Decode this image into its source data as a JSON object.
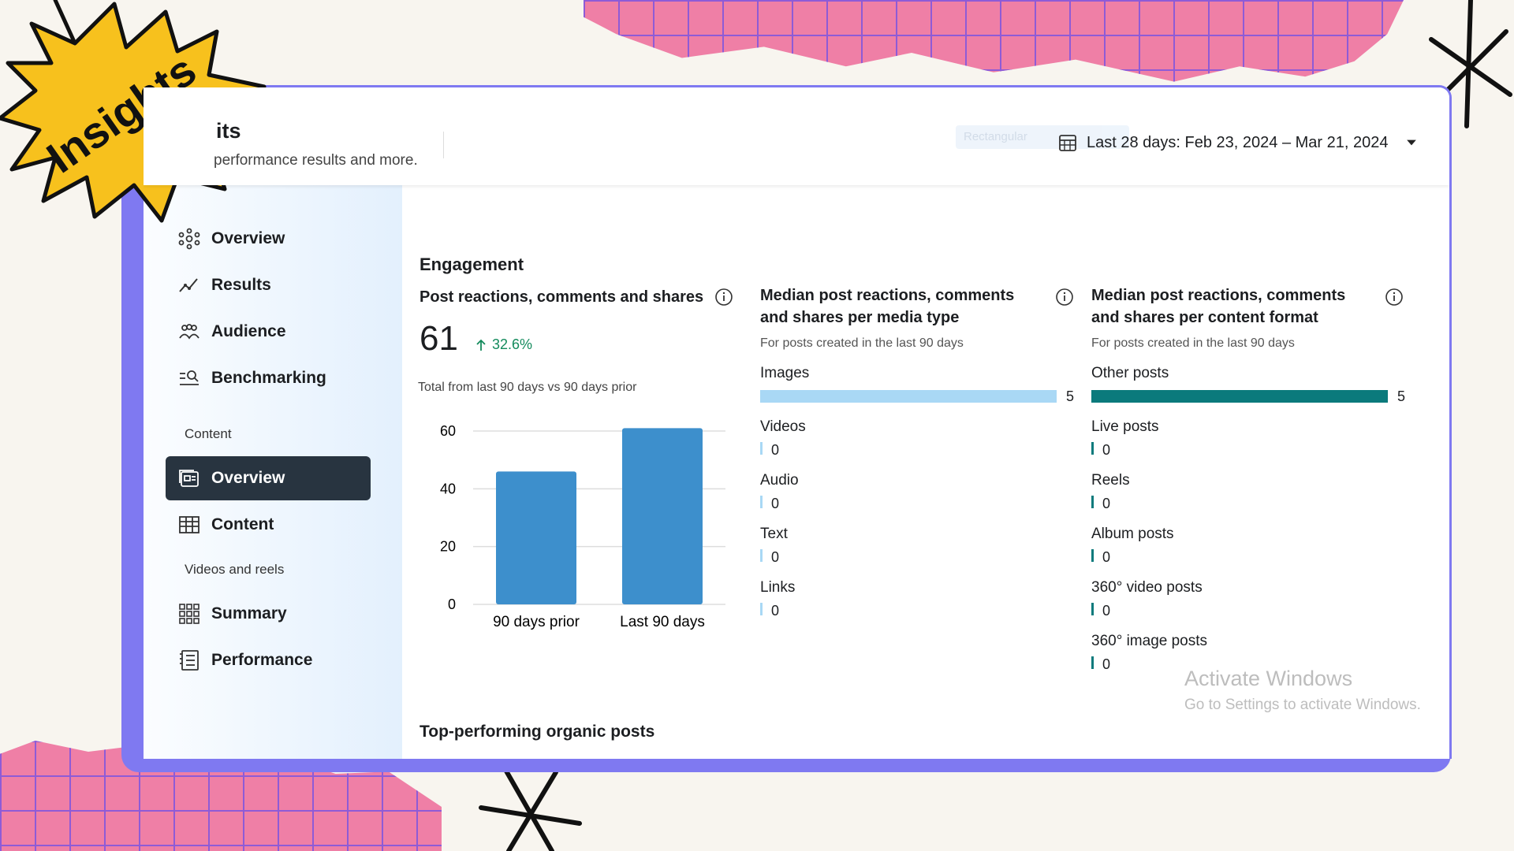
{
  "badge": {
    "text": "Insights"
  },
  "header": {
    "title_fragment": "its",
    "subtitle_fragment": "performance results and more.",
    "ghost_tag": "Rectangular",
    "date_range": "Last 28 days: Feb 23, 2024 – Mar 21, 2024"
  },
  "sidebar": {
    "items": [
      {
        "label": "Overview",
        "icon": "network-icon"
      },
      {
        "label": "Results",
        "icon": "trend-icon"
      },
      {
        "label": "Audience",
        "icon": "people-icon"
      },
      {
        "label": "Benchmarking",
        "icon": "benchmark-icon"
      }
    ],
    "section_content": "Content",
    "content_items": [
      {
        "label": "Overview",
        "icon": "posts-overview-icon",
        "active": true
      },
      {
        "label": "Content",
        "icon": "table-icon"
      }
    ],
    "section_videos": "Videos and reels",
    "video_items": [
      {
        "label": "Summary",
        "icon": "grid-icon"
      },
      {
        "label": "Performance",
        "icon": "report-icon"
      }
    ]
  },
  "engagement": {
    "heading": "Engagement",
    "card1": {
      "title": "Post reactions, comments and shares",
      "value": "61",
      "change": "32.6%",
      "note": "Total from last 90 days vs 90 days prior"
    },
    "card2": {
      "title_line1": "Median post reactions, comments",
      "title_line2": "and shares per media type",
      "subtitle": "For posts created in the last 90 days",
      "rows": [
        {
          "label": "Images",
          "value": "5",
          "fraction": 1.0
        },
        {
          "label": "Videos",
          "value": "0",
          "fraction": 0
        },
        {
          "label": "Audio",
          "value": "0",
          "fraction": 0
        },
        {
          "label": "Text",
          "value": "0",
          "fraction": 0
        },
        {
          "label": "Links",
          "value": "0",
          "fraction": 0
        }
      ]
    },
    "card3": {
      "title_line1": "Median post reactions, comments",
      "title_line2": "and shares per content format",
      "subtitle": "For posts created in the last 90 days",
      "rows": [
        {
          "label": "Other posts",
          "value": "5",
          "fraction": 1.0
        },
        {
          "label": "Live posts",
          "value": "0",
          "fraction": 0
        },
        {
          "label": "Reels",
          "value": "0",
          "fraction": 0
        },
        {
          "label": "Album posts",
          "value": "0",
          "fraction": 0
        },
        {
          "label": "360° video posts",
          "value": "0",
          "fraction": 0
        },
        {
          "label": "360° image posts",
          "value": "0",
          "fraction": 0
        }
      ]
    }
  },
  "top_posts_heading": "Top-performing organic posts",
  "windows_watermark": {
    "line1": "Activate Windows",
    "line2": "Go to Settings to activate Windows."
  },
  "colors": {
    "bar_blue": "#3d8fcc",
    "media_bar": "#a9d8f5",
    "format_bar": "#0b7a7c",
    "accent_purple": "#7f79f1",
    "pink_paper": "#ef7fa6",
    "badge_yellow": "#f7c11d"
  },
  "chart_data": {
    "type": "bar",
    "categories": [
      "90 days prior",
      "Last 90 days"
    ],
    "values": [
      46,
      61
    ],
    "ylim": [
      0,
      60
    ],
    "yticks": [
      "0",
      "20",
      "40",
      "60"
    ],
    "grid": true
  }
}
